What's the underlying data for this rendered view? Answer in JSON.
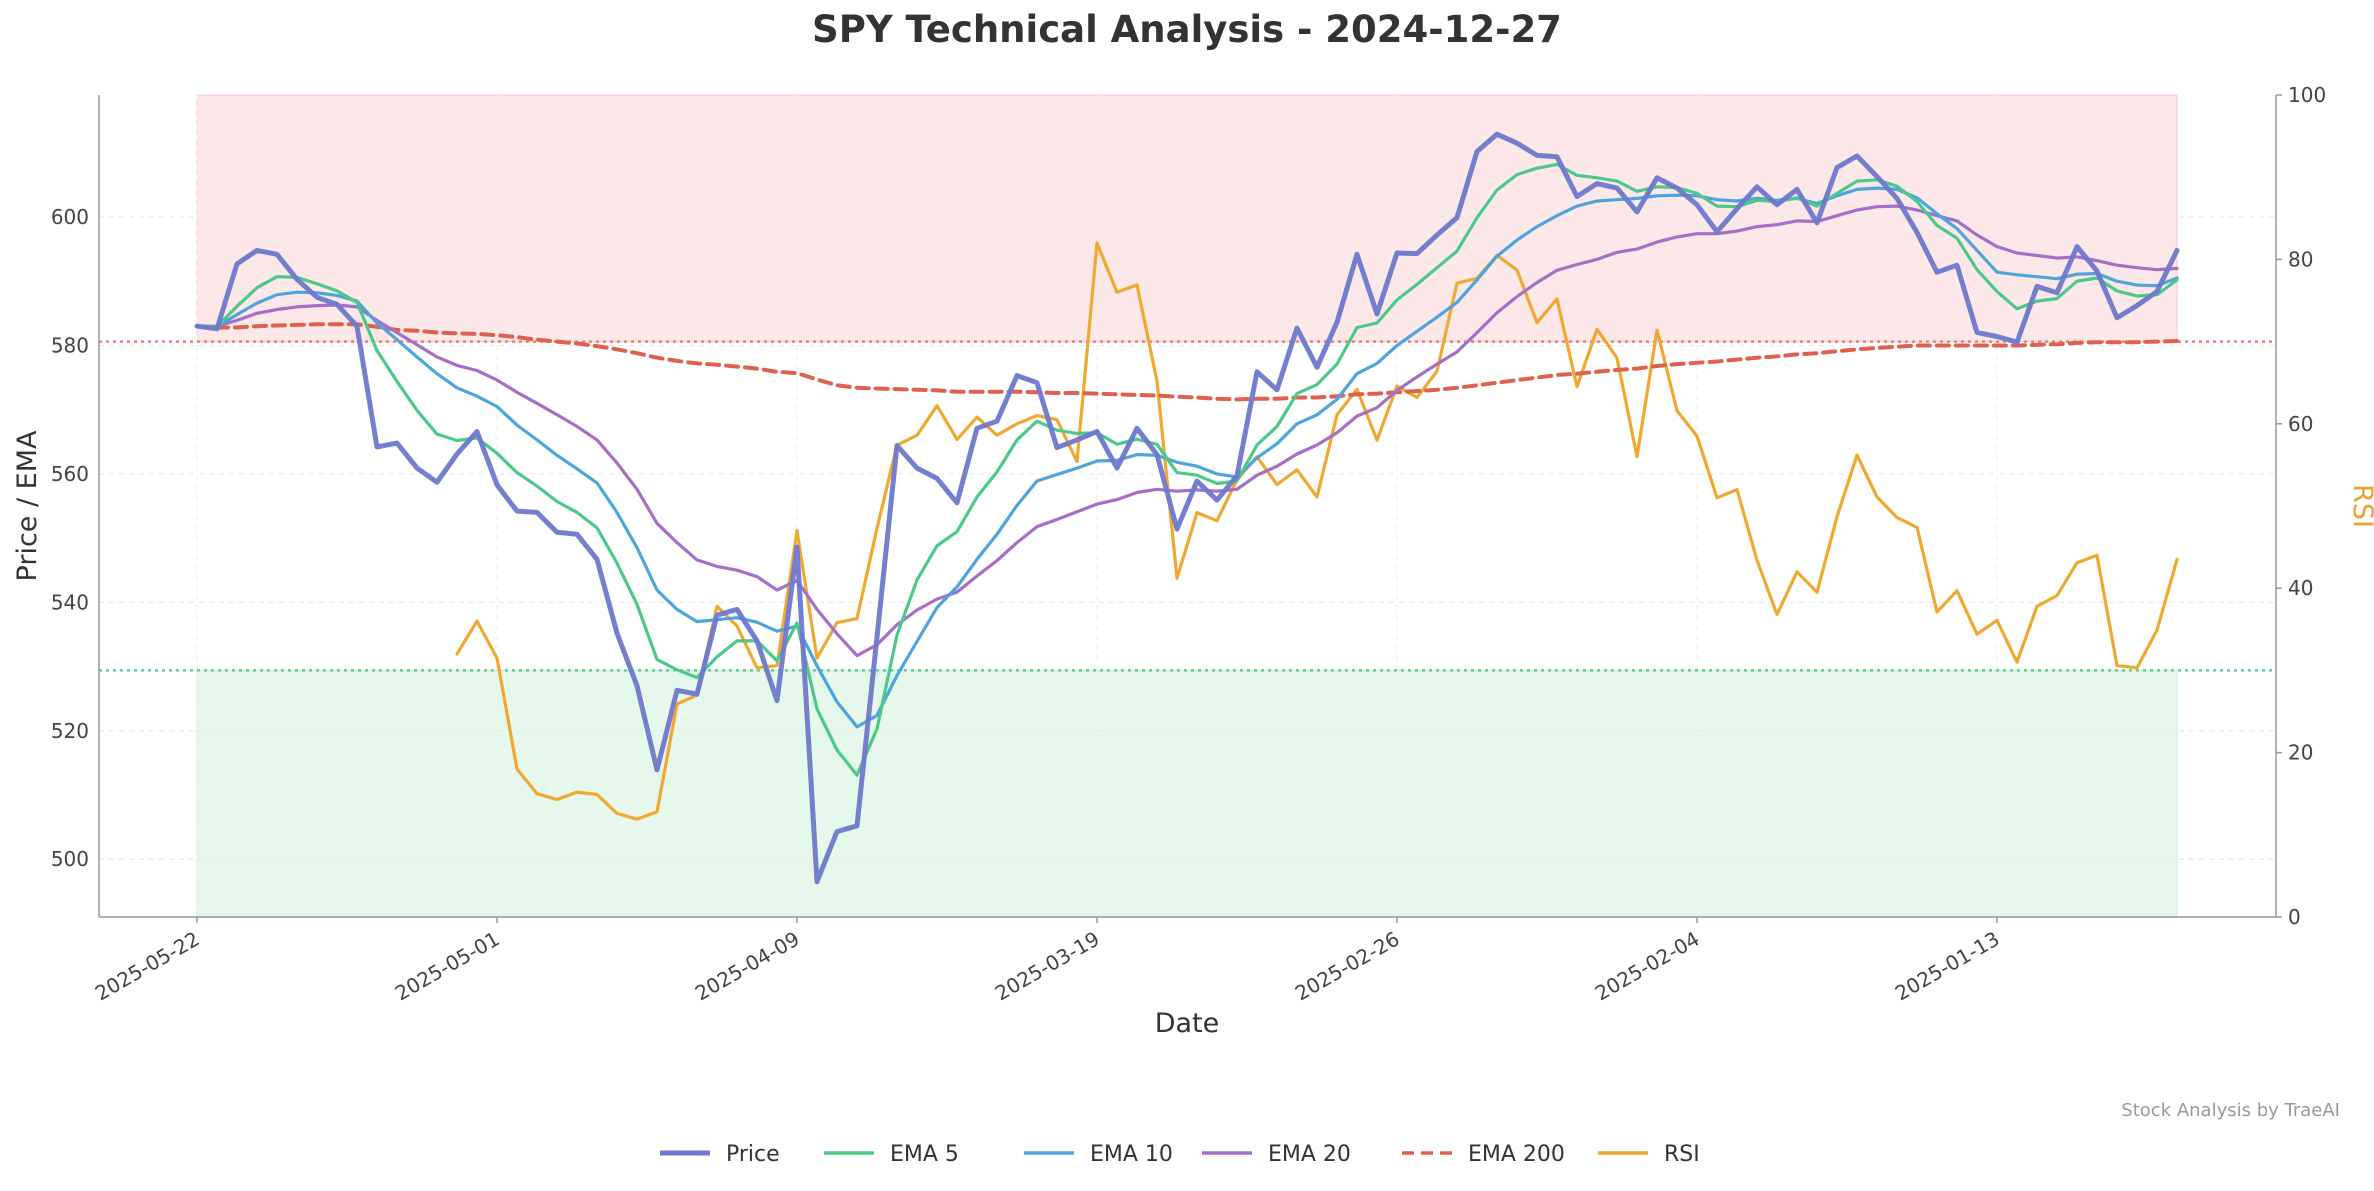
{
  "chart_data": {
    "type": "line",
    "title": "SPY Technical Analysis - 2024-12-27",
    "xlabel": "Date",
    "ylabel": "Price / EMA",
    "y2label": "RSI",
    "ylim": [
      491,
      619
    ],
    "y2lim": [
      0,
      100
    ],
    "y_ticks": [
      500,
      520,
      540,
      560,
      580,
      600
    ],
    "y2_ticks": [
      0,
      20,
      40,
      60,
      80,
      100
    ],
    "x_tick_labels": [
      "2025-05-22",
      "2025-05-01",
      "2025-04-09",
      "2025-03-19",
      "2025-02-26",
      "2025-02-04",
      "2025-01-13"
    ],
    "x_tick_index": [
      0,
      15,
      30,
      45,
      60,
      75,
      90
    ],
    "overbought_level": 70,
    "oversold_level": 30,
    "grid": true,
    "legend_position": "bottom-center",
    "watermark": "Stock Analysis by TraeAI",
    "colors": {
      "price": "#6e78cc",
      "ema5": "#4cc98a",
      "ema10": "#4ea4dc",
      "ema20": "#a56ec8",
      "ema200": "#e06050",
      "rsi": "#f0a830",
      "overbought_fill": "#fce8e8",
      "oversold_fill": "#e6f7ec",
      "overbought_line": "#e88080",
      "oversold_line": "#60d090"
    },
    "series": [
      {
        "name": "Price",
        "key": "price",
        "axis": "left",
        "start": 0,
        "values": [
          583.0,
          582.6,
          592.7,
          594.8,
          594.2,
          590.3,
          587.5,
          586.4,
          583.0,
          564.2,
          564.8,
          560.9,
          558.7,
          563.1,
          566.6,
          558.3,
          554.2,
          554.0,
          550.9,
          550.6,
          546.7,
          535.2,
          527.0,
          513.9,
          526.3,
          525.7,
          538.0,
          538.9,
          534.0,
          524.7,
          548.6,
          496.5,
          504.3,
          505.2,
          534.6,
          564.4,
          560.9,
          559.3,
          555.5,
          567.1,
          568.2,
          575.3,
          574.2,
          564.1,
          565.3,
          566.6,
          560.9,
          567.1,
          563.0,
          551.4,
          558.9,
          555.9,
          559.7,
          575.9,
          573.1,
          582.7,
          576.6,
          583.6,
          594.2,
          584.9,
          594.4,
          594.3,
          597.2,
          599.9,
          610.2,
          612.9,
          611.5,
          609.6,
          609.4,
          603.2,
          605.2,
          604.5,
          600.8,
          606.1,
          604.5,
          601.9,
          597.7,
          601.3,
          604.7,
          601.9,
          604.3,
          599.1,
          607.7,
          609.5,
          606.3,
          602.9,
          597.6,
          591.4,
          592.5,
          582.0,
          581.4,
          580.5,
          589.2,
          588.2,
          595.4,
          591.6,
          584.3,
          586.2,
          588.4,
          594.8
        ]
      },
      {
        "name": "EMA 5",
        "key": "ema5",
        "axis": "left",
        "start": 0,
        "values": [
          583.0,
          582.9,
          586.1,
          589.0,
          590.7,
          590.6,
          589.6,
          588.5,
          586.7,
          579.2,
          574.4,
          569.9,
          566.2,
          565.2,
          565.6,
          563.2,
          560.2,
          558.1,
          555.7,
          554.0,
          551.6,
          546.1,
          539.7,
          531.1,
          529.5,
          528.3,
          531.5,
          534.0,
          534.0,
          530.9,
          536.8,
          523.4,
          517.0,
          513.1,
          520.3,
          534.9,
          543.5,
          548.8,
          551.0,
          556.4,
          560.3,
          565.3,
          568.2,
          566.8,
          566.3,
          566.4,
          564.6,
          565.4,
          564.6,
          560.2,
          559.8,
          558.5,
          558.9,
          564.5,
          567.4,
          572.5,
          573.9,
          577.1,
          582.8,
          583.5,
          587.1,
          589.5,
          592.1,
          594.7,
          599.9,
          604.2,
          606.6,
          607.6,
          608.2,
          606.5,
          606.1,
          605.6,
          604.0,
          604.7,
          604.6,
          603.7,
          601.7,
          601.6,
          602.6,
          602.4,
          603.0,
          601.7,
          603.7,
          605.6,
          605.8,
          604.8,
          602.4,
          598.7,
          596.7,
          591.8,
          588.4,
          585.7,
          586.9,
          587.3,
          590.0,
          590.5,
          588.5,
          587.7,
          587.9,
          590.2
        ]
      },
      {
        "name": "EMA 10",
        "key": "ema10",
        "axis": "left",
        "start": 0,
        "values": [
          583.0,
          582.9,
          584.8,
          586.6,
          587.9,
          588.3,
          588.2,
          587.8,
          586.9,
          583.5,
          580.9,
          578.2,
          575.6,
          573.4,
          572.1,
          570.5,
          567.6,
          565.3,
          562.9,
          560.8,
          558.6,
          554.0,
          548.5,
          541.9,
          538.9,
          537.0,
          537.3,
          537.6,
          536.9,
          535.5,
          536.3,
          530.1,
          524.5,
          520.6,
          522.4,
          528.6,
          533.9,
          539.2,
          542.4,
          546.7,
          550.6,
          555.1,
          558.9,
          559.9,
          560.9,
          562.0,
          562.1,
          563.0,
          562.9,
          561.8,
          561.2,
          560.0,
          559.5,
          562.5,
          564.7,
          567.8,
          569.2,
          571.6,
          575.6,
          577.2,
          580.0,
          582.2,
          584.4,
          586.7,
          590.2,
          593.9,
          596.4,
          598.5,
          600.2,
          601.7,
          602.5,
          602.7,
          602.9,
          603.3,
          603.4,
          603.3,
          602.7,
          602.5,
          602.9,
          602.6,
          602.9,
          602.1,
          603.3,
          604.3,
          604.5,
          604.3,
          603.0,
          600.5,
          598.2,
          594.8,
          591.4,
          591.0,
          590.7,
          590.4,
          591.1,
          591.2,
          590.0,
          589.4,
          589.3,
          590.5
        ]
      },
      {
        "name": "EMA 20",
        "key": "ema20",
        "axis": "left",
        "start": 0,
        "values": [
          583.0,
          583.0,
          583.9,
          585.0,
          585.6,
          586.0,
          586.2,
          586.3,
          586.0,
          583.9,
          582.0,
          580.1,
          578.2,
          576.9,
          576.1,
          574.6,
          572.7,
          571.0,
          569.2,
          567.4,
          565.3,
          561.7,
          557.6,
          552.3,
          549.3,
          546.6,
          545.6,
          545.0,
          544.0,
          541.9,
          543.4,
          538.9,
          535.1,
          531.7,
          533.4,
          536.5,
          538.8,
          540.5,
          541.6,
          544.1,
          546.5,
          549.3,
          551.8,
          552.9,
          554.1,
          555.3,
          556.0,
          557.1,
          557.6,
          557.3,
          557.5,
          557.3,
          557.6,
          559.8,
          561.2,
          563.1,
          564.5,
          566.4,
          569.0,
          570.3,
          573.0,
          575.1,
          577.1,
          579.0,
          582.0,
          585.1,
          587.6,
          589.8,
          591.7,
          592.6,
          593.4,
          594.5,
          595.0,
          596.1,
          596.9,
          597.4,
          597.4,
          597.8,
          598.5,
          598.8,
          599.4,
          599.3,
          600.2,
          601.1,
          601.6,
          601.7,
          601.1,
          600.2,
          599.4,
          597.2,
          595.4,
          594.4,
          594.0,
          593.6,
          593.8,
          593.2,
          592.5,
          592.1,
          591.8,
          592.0
        ]
      },
      {
        "name": "EMA 200",
        "key": "ema200",
        "axis": "left",
        "start": 0,
        "values": [
          583.0,
          582.8,
          582.8,
          583.0,
          583.1,
          583.2,
          583.3,
          583.3,
          583.3,
          582.9,
          582.4,
          582.3,
          582.0,
          581.9,
          581.8,
          581.6,
          581.3,
          580.9,
          580.6,
          580.3,
          579.9,
          579.4,
          578.8,
          578.1,
          577.6,
          577.2,
          577.0,
          576.7,
          576.4,
          575.9,
          575.7,
          574.7,
          573.8,
          573.4,
          573.3,
          573.2,
          573.1,
          573.0,
          572.8,
          572.8,
          572.8,
          572.8,
          572.7,
          572.6,
          572.6,
          572.5,
          572.4,
          572.3,
          572.2,
          572.0,
          571.9,
          571.7,
          571.6,
          571.7,
          571.7,
          571.9,
          571.9,
          572.1,
          572.4,
          572.5,
          572.7,
          572.9,
          573.1,
          573.4,
          573.8,
          574.2,
          574.6,
          575.0,
          575.4,
          575.6,
          575.9,
          576.2,
          576.4,
          576.8,
          577.1,
          577.3,
          577.5,
          577.8,
          578.1,
          578.3,
          578.6,
          578.8,
          579.1,
          579.4,
          579.6,
          579.8,
          580.0,
          580.0,
          580.0,
          580.0,
          580.0,
          580.0,
          580.1,
          580.2,
          580.4,
          580.5,
          580.5,
          580.5,
          580.6,
          580.7
        ]
      },
      {
        "name": "RSI",
        "key": "rsi",
        "axis": "right",
        "start": 13,
        "values": [
          32.0,
          36.0,
          31.5,
          18.0,
          15.0,
          14.3,
          15.2,
          14.9,
          12.6,
          11.9,
          12.8,
          25.9,
          27.0,
          37.8,
          35.4,
          30.3,
          30.6,
          47.0,
          31.5,
          35.8,
          36.3,
          47.3,
          57.4,
          58.6,
          62.2,
          58.1,
          60.8,
          58.6,
          60.0,
          61.0,
          60.5,
          55.4,
          82.0,
          76.0,
          76.9,
          65.2,
          41.2,
          49.2,
          48.2,
          53.2,
          56.0,
          52.6,
          54.4,
          51.1,
          61.1,
          64.2,
          58.0,
          64.6,
          63.2,
          66.4,
          77.1,
          77.7,
          80.5,
          78.7,
          72.3,
          75.2,
          64.5,
          71.5,
          68.0,
          56.0,
          71.4,
          61.6,
          58.5,
          51.0,
          52.0,
          43.4,
          36.8,
          42.0,
          39.5,
          48.7,
          56.2,
          51.1,
          48.6,
          47.4,
          37.1,
          39.7,
          34.4,
          36.1,
          31.0,
          37.8,
          39.1,
          43.1,
          44.0,
          30.6,
          30.3,
          34.9,
          43.5
        ]
      }
    ]
  }
}
